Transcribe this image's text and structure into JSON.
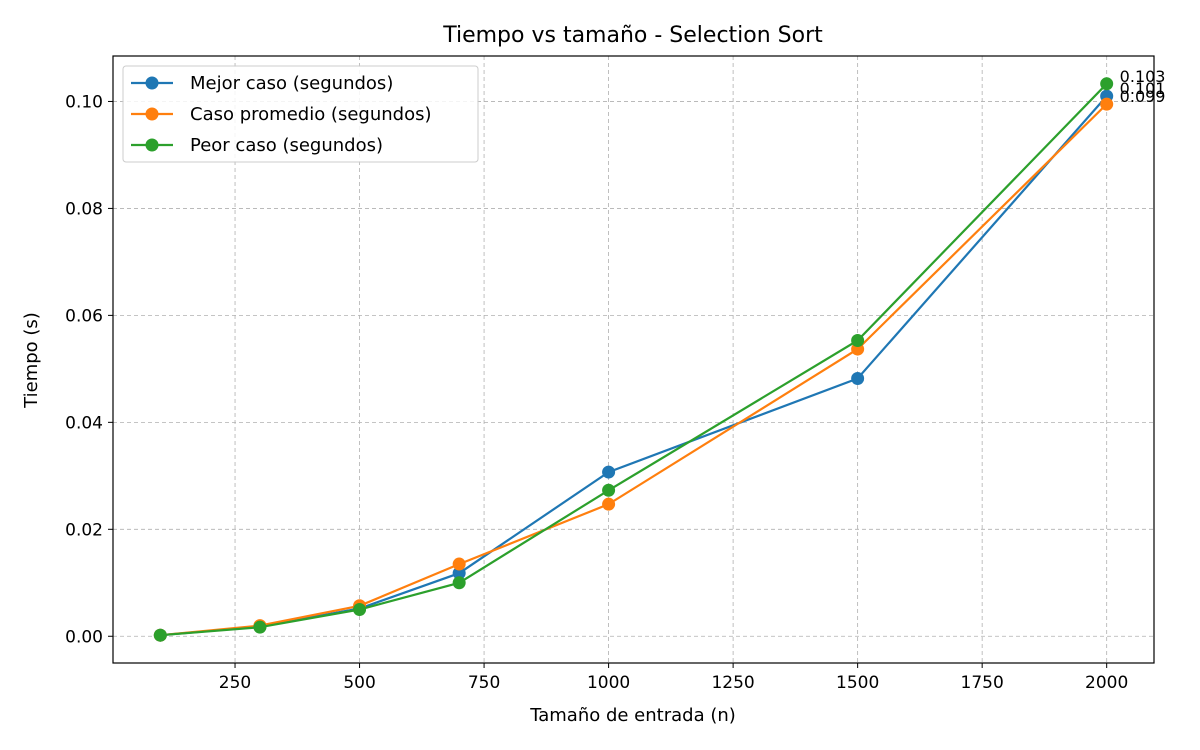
{
  "chart_data": {
    "type": "line",
    "title": "Tiempo vs tamaño - Selection Sort",
    "xlabel": "Tamaño de entrada (n)",
    "ylabel": "Tiempo (s)",
    "xlim": [
      5,
      2095
    ],
    "ylim": [
      -0.005,
      0.1085
    ],
    "xticks": [
      250,
      500,
      750,
      1000,
      1250,
      1500,
      1750,
      2000
    ],
    "xtick_labels": [
      "250",
      "500",
      "750",
      "1000",
      "1250",
      "1500",
      "1750",
      "2000"
    ],
    "yticks": [
      0.0,
      0.02,
      0.04,
      0.06,
      0.08,
      0.1
    ],
    "ytick_labels": [
      "0.00",
      "0.02",
      "0.04",
      "0.06",
      "0.08",
      "0.10"
    ],
    "grid": true,
    "legend_position": "upper-left",
    "x": [
      100,
      300,
      500,
      700,
      1000,
      1500,
      2000
    ],
    "series": [
      {
        "name": "Mejor caso (segundos)",
        "color": "#1f77b4",
        "values": [
          0.0002,
          0.0018,
          0.0052,
          0.0118,
          0.0307,
          0.0482,
          0.101
        ]
      },
      {
        "name": "Caso promedio (segundos)",
        "color": "#ff7f0e",
        "values": [
          0.0002,
          0.002,
          0.0057,
          0.0135,
          0.0247,
          0.0537,
          0.0995
        ]
      },
      {
        "name": "Peor caso (segundos)",
        "color": "#2ca02c",
        "values": [
          0.0002,
          0.0017,
          0.005,
          0.01,
          0.0273,
          0.0553,
          0.1033
        ]
      }
    ],
    "annotations": [
      {
        "text": "0.103",
        "x": 2000,
        "y": 0.1033
      },
      {
        "text": "0.101",
        "x": 2000,
        "y": 0.101
      },
      {
        "text": "0.099",
        "x": 2000,
        "y": 0.0995
      }
    ]
  }
}
